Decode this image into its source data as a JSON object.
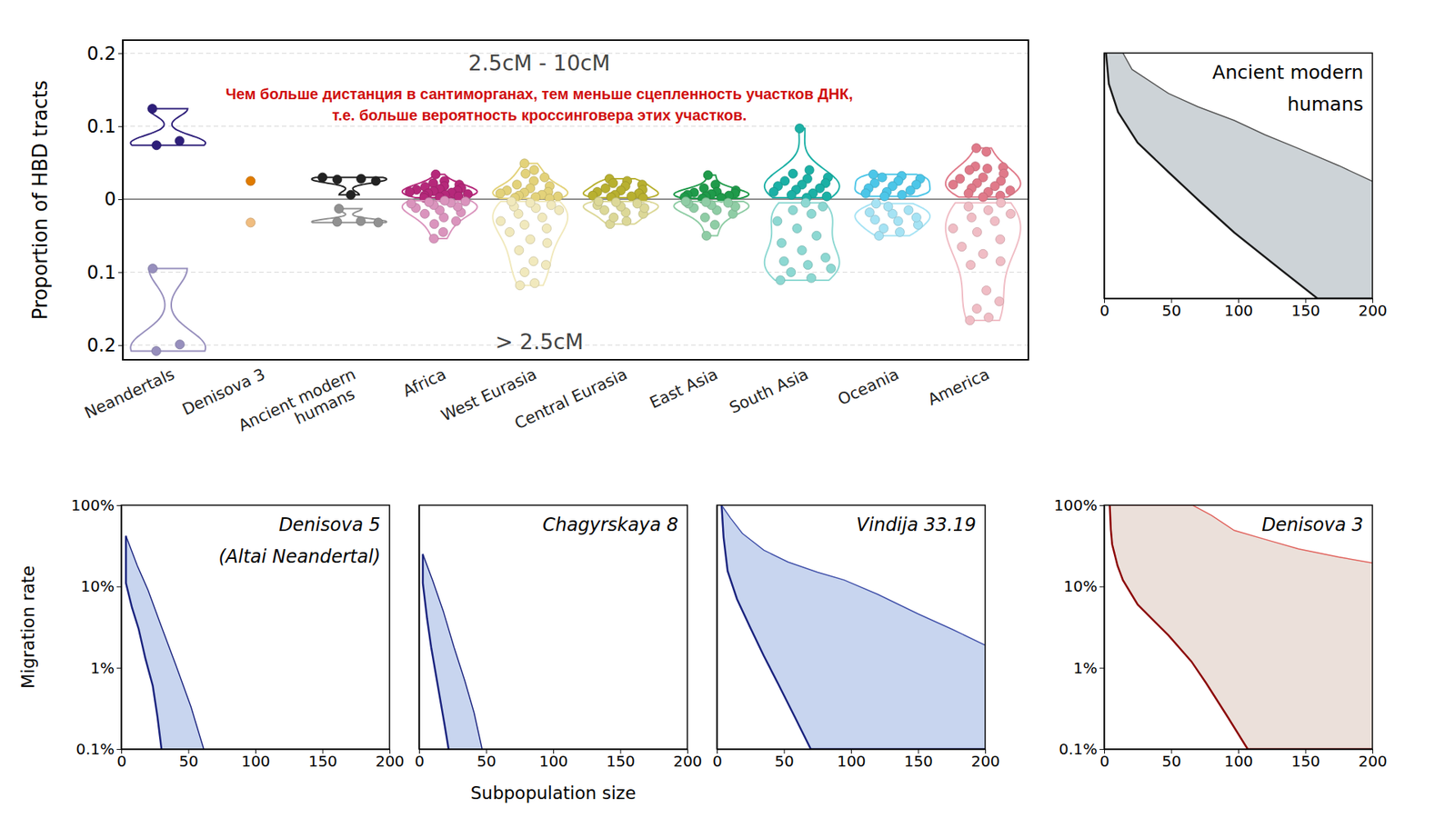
{
  "chart_data": [
    {
      "type": "violin",
      "ylabel": "Proportion of HBD tracts",
      "annotations": [
        "Чем больше дистанция в сантиморганах, тем меньше сцепленность участков ДНК,",
        "т.е. больше вероятность кроссинговера этих участков."
      ],
      "categories": [
        "Neandertals",
        "Denisova 3",
        "Ancient modern humans",
        "Africa",
        "West Eurasia",
        "Central Eurasia",
        "East Asia",
        "South Asia",
        "Oceania",
        "America"
      ],
      "colors": [
        "#2e1f7a",
        "#e07b00",
        "#222222",
        "#b5287a",
        "#e3d27a",
        "#b8b030",
        "#1f9a4a",
        "#1bb0a5",
        "#4cc6e8",
        "#e07a8a"
      ],
      "ylim": [
        0,
        0.218
      ],
      "yticks": [
        0,
        0.1,
        0.2
      ],
      "y2lim": [
        0,
        0.22
      ],
      "y2ticks": [
        0.1,
        0.2
      ],
      "grid": true,
      "series": [
        {
          "name": "2.5cM - 10cM",
          "values": [
            [
              0.124,
              0.08,
              0.074
            ],
            [
              0.025
            ],
            [
              0.03,
              0.028,
              0.027,
              0.025,
              0.006
            ],
            [
              0.034,
              0.025,
              0.022,
              0.02,
              0.018,
              0.017,
              0.015,
              0.014,
              0.013,
              0.012,
              0.011,
              0.01,
              0.009,
              0.008,
              0.007,
              0.006,
              0.005,
              0.004,
              0.003,
              0.002
            ],
            [
              0.049,
              0.04,
              0.035,
              0.03,
              0.025,
              0.02,
              0.018,
              0.015,
              0.012,
              0.01,
              0.009,
              0.008,
              0.006,
              0.005,
              0.004,
              0.003,
              0.002,
              0.001
            ],
            [
              0.028,
              0.025,
              0.022,
              0.02,
              0.018,
              0.015,
              0.013,
              0.012,
              0.01,
              0.008,
              0.006,
              0.005,
              0.004,
              0.003,
              0.002
            ],
            [
              0.033,
              0.02,
              0.015,
              0.012,
              0.01,
              0.009,
              0.008,
              0.007,
              0.006,
              0.005,
              0.004,
              0.003,
              0.002,
              0.001
            ],
            [
              0.097,
              0.04,
              0.035,
              0.03,
              0.028,
              0.025,
              0.022,
              0.02,
              0.018,
              0.015,
              0.013,
              0.01,
              0.008,
              0.006,
              0.004,
              0.002
            ],
            [
              0.034,
              0.032,
              0.03,
              0.028,
              0.025,
              0.022,
              0.02,
              0.018,
              0.015,
              0.012,
              0.01,
              0.008,
              0.006,
              0.004
            ],
            [
              0.07,
              0.065,
              0.045,
              0.044,
              0.042,
              0.04,
              0.035,
              0.03,
              0.028,
              0.025,
              0.022,
              0.02,
              0.018,
              0.015,
              0.012,
              0.01,
              0.008,
              0.005,
              0.003
            ]
          ]
        },
        {
          "name": "> 2.5cM",
          "axis": "y2",
          "values": [
            [
              0.095,
              0.199,
              0.208
            ],
            [
              0.032
            ],
            [
              0.013,
              0.03,
              0.031,
              0.032
            ],
            [
              0.054,
              0.045,
              0.034,
              0.03,
              0.025,
              0.02,
              0.018,
              0.015,
              0.012,
              0.01,
              0.008,
              0.006,
              0.005,
              0.004,
              0.003,
              0.002
            ],
            [
              0.118,
              0.115,
              0.1,
              0.09,
              0.085,
              0.07,
              0.06,
              0.055,
              0.045,
              0.04,
              0.035,
              0.03,
              0.025,
              0.02,
              0.015,
              0.012,
              0.01,
              0.008,
              0.005,
              0.003
            ],
            [
              0.034,
              0.03,
              0.025,
              0.02,
              0.018,
              0.015,
              0.012,
              0.01,
              0.008,
              0.006,
              0.004,
              0.003
            ],
            [
              0.05,
              0.035,
              0.025,
              0.02,
              0.015,
              0.012,
              0.01,
              0.008,
              0.006,
              0.005,
              0.004,
              0.003
            ],
            [
              0.111,
              0.108,
              0.1,
              0.095,
              0.09,
              0.085,
              0.08,
              0.07,
              0.06,
              0.05,
              0.04,
              0.03,
              0.02,
              0.015,
              0.01,
              0.005
            ],
            [
              0.05,
              0.045,
              0.04,
              0.035,
              0.03,
              0.028,
              0.025,
              0.02,
              0.018,
              0.015,
              0.01,
              0.006
            ],
            [
              0.166,
              0.162,
              0.15,
              0.14,
              0.125,
              0.09,
              0.085,
              0.075,
              0.065,
              0.055,
              0.045,
              0.04,
              0.03,
              0.025,
              0.02,
              0.015,
              0.01,
              0.005
            ]
          ]
        }
      ]
    },
    {
      "type": "area",
      "title": "Ancient modern humans",
      "color": "#cdd3d7",
      "xlim": [
        0,
        200
      ],
      "xticks": [
        0,
        50,
        100,
        150,
        200
      ],
      "ylim": [
        0.1,
        100
      ],
      "log": "y",
      "tick_labels": "x",
      "series": [
        {
          "color": "#1a1a1a",
          "x": [
            1.4,
            3.5,
            10.4,
            25,
            48,
            72,
            97,
            131,
            159,
            200
          ],
          "values": [
            100,
            42,
            19,
            8,
            3.5,
            1.5,
            0.64,
            0.23,
            0.1,
            0.1
          ]
        },
        {
          "color": "#555555",
          "x": [
            14,
            20.8,
            48,
            70,
            97,
            120,
            145,
            175,
            200
          ],
          "values": [
            100,
            63,
            32,
            22,
            15,
            10,
            6.8,
            4.2,
            2.7
          ]
        }
      ]
    },
    {
      "type": "area",
      "title": "Denisova 5 (Altai Neandertal)",
      "color": "#c8d5ef",
      "ylabel": "Migration rate",
      "xlim": [
        0,
        200
      ],
      "xticks": [
        0,
        50,
        100,
        150,
        200
      ],
      "ylim": [
        0.1,
        100
      ],
      "log": "y",
      "yticks": [
        {
          "value": 0.1,
          "label": "0.1%"
        },
        {
          "value": 1,
          "label": "1%"
        },
        {
          "value": 10,
          "label": "10%"
        },
        {
          "value": 100,
          "label": "100%"
        }
      ],
      "series": [
        {
          "color": "#1a237e",
          "x": [
            3.5,
            3.5,
            8,
            13,
            18,
            23.5,
            27,
            30
          ],
          "values": [
            42,
            11,
            5.5,
            3,
            1.3,
            0.6,
            0.25,
            0.1
          ]
        },
        {
          "color": "#1a237e",
          "x": [
            3.5,
            12,
            20,
            30,
            41,
            52,
            61.5
          ],
          "values": [
            42,
            18,
            9,
            3.2,
            1.05,
            0.33,
            0.1
          ]
        }
      ]
    },
    {
      "type": "area",
      "title": "Chagyrskaya 8",
      "color": "#c8d5ef",
      "xlabel": "Subpopulation size",
      "xlim": [
        0,
        200
      ],
      "xticks": [
        0,
        50,
        100,
        150,
        200
      ],
      "ylim": [
        0.1,
        100
      ],
      "log": "y",
      "tick_labels": "x",
      "series": [
        {
          "color": "#1a237e",
          "x": [
            2.8,
            2.8,
            6,
            9,
            14,
            19,
            22
          ],
          "values": [
            25,
            11,
            4,
            1.8,
            0.6,
            0.2,
            0.1
          ]
        },
        {
          "color": "#1a237e",
          "x": [
            2.8,
            10,
            18,
            26,
            34,
            41,
            47
          ],
          "values": [
            25,
            12,
            5,
            1.8,
            0.7,
            0.28,
            0.1
          ]
        }
      ]
    },
    {
      "type": "area",
      "title": "Vindija 33.19",
      "color": "#c8d5ef",
      "xlim": [
        0,
        200
      ],
      "xticks": [
        0,
        50,
        100,
        150,
        200
      ],
      "ylim": [
        0.1,
        100
      ],
      "log": "y",
      "tick_labels": "x",
      "series": [
        {
          "color": "#1a237e",
          "x": [
            3.5,
            5,
            8,
            15,
            25,
            35,
            46,
            58,
            70,
            200
          ],
          "values": [
            100,
            40,
            15.5,
            7,
            3.1,
            1.4,
            0.62,
            0.25,
            0.1,
            0.1
          ]
        },
        {
          "color": "#3f4fa8",
          "x": [
            3.5,
            10,
            19,
            35,
            53,
            75,
            95,
            120,
            150,
            175,
            200
          ],
          "values": [
            100,
            70,
            45,
            28,
            20,
            15,
            12,
            8,
            4.6,
            3,
            1.9
          ]
        }
      ]
    },
    {
      "type": "area",
      "title": "Denisova 3",
      "color": "#ebe0da",
      "xlim": [
        0,
        200
      ],
      "xticks": [
        0,
        50,
        100,
        150,
        200
      ],
      "ylim": [
        0.1,
        100
      ],
      "log": "y",
      "yticks": [
        {
          "value": 0.1,
          "label": "0.1%"
        },
        {
          "value": 1,
          "label": "1%"
        },
        {
          "value": 10,
          "label": "10%"
        },
        {
          "value": 100,
          "label": "100%"
        }
      ],
      "series": [
        {
          "color": "#8b0000",
          "x": [
            4.2,
            5,
            6,
            10,
            14,
            25,
            48,
            65,
            76,
            92,
            107,
            200
          ],
          "values": [
            100,
            50,
            33,
            18,
            12,
            6,
            2.5,
            1.2,
            0.65,
            0.25,
            0.1,
            0.1
          ]
        },
        {
          "color": "#e0605a",
          "x": [
            4.2,
            40,
            66,
            80,
            97,
            120,
            145,
            175,
            200
          ],
          "values": [
            100,
            100,
            100,
            75,
            49,
            38,
            29,
            23,
            19.5
          ]
        }
      ]
    }
  ]
}
